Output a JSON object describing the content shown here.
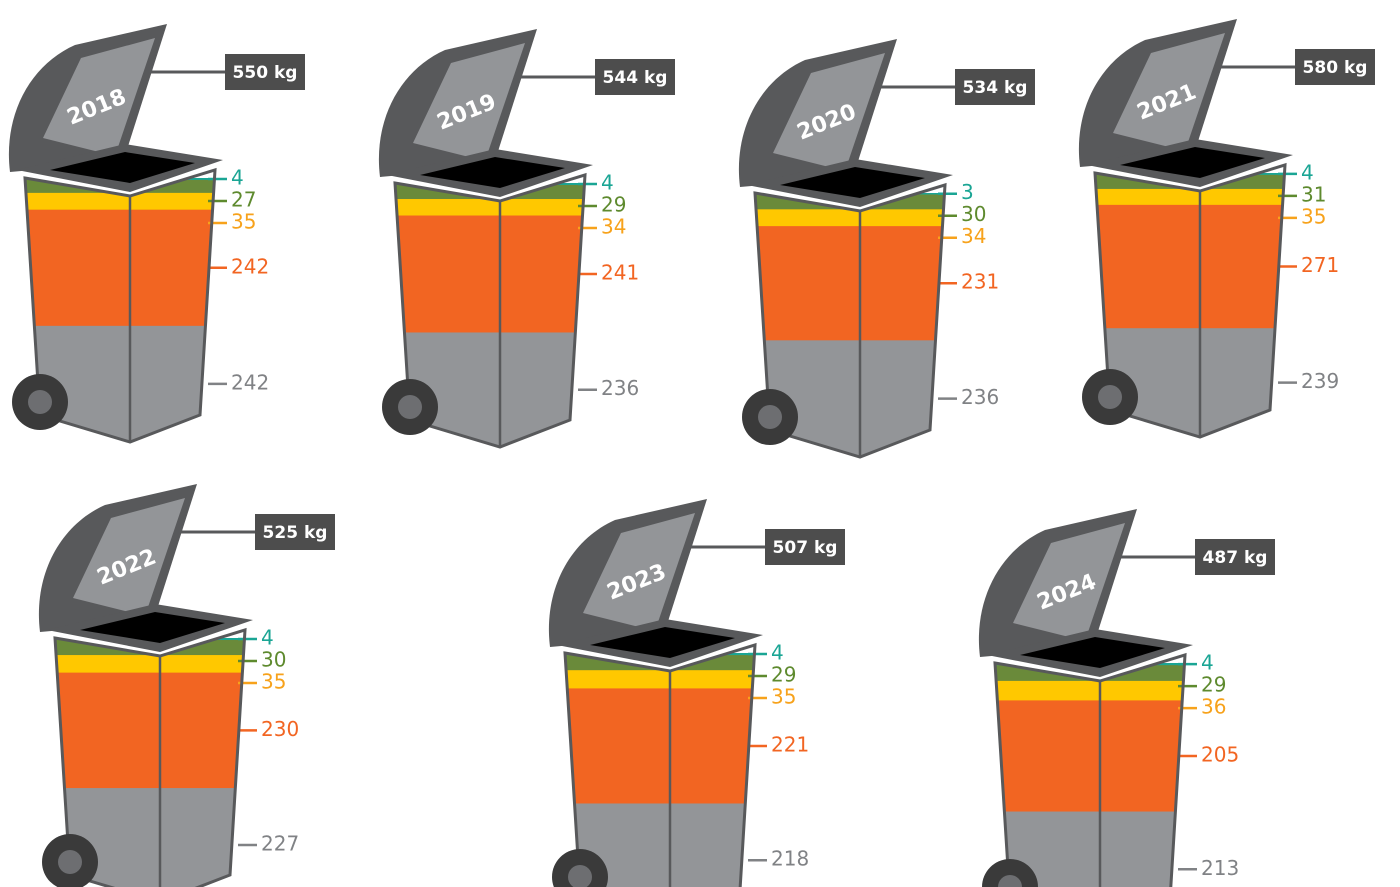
{
  "chart_data": {
    "type": "bin",
    "categories": [
      "2018",
      "2019",
      "2020",
      "2021",
      "2022",
      "2023",
      "2024"
    ],
    "totals": {
      "values": [
        550,
        544,
        534,
        580,
        525,
        507,
        487
      ],
      "value_labels": [
        "550 kg",
        "544 kg",
        "534 kg",
        "580 kg",
        "525 kg",
        "507 kg",
        "487 kg"
      ],
      "color": "#4d4d4d"
    },
    "series": [
      {
        "color": "#1aa594",
        "label_color": "#1aa594",
        "values": [
          4,
          4,
          3,
          4,
          4,
          4,
          4
        ]
      },
      {
        "color": "#6a8a3a",
        "label_color": "#5e8a2e",
        "values": [
          27,
          29,
          30,
          31,
          30,
          29,
          29
        ]
      },
      {
        "color": "#ffc800",
        "label_color": "#f7a21b",
        "values": [
          35,
          34,
          34,
          35,
          35,
          35,
          36
        ]
      },
      {
        "color": "#f26522",
        "label_color": "#f26522",
        "values": [
          242,
          241,
          231,
          271,
          230,
          221,
          205
        ]
      },
      {
        "color": "#939598",
        "label_color": "#808285",
        "values": [
          242,
          236,
          236,
          239,
          227,
          218,
          213
        ]
      }
    ]
  }
}
